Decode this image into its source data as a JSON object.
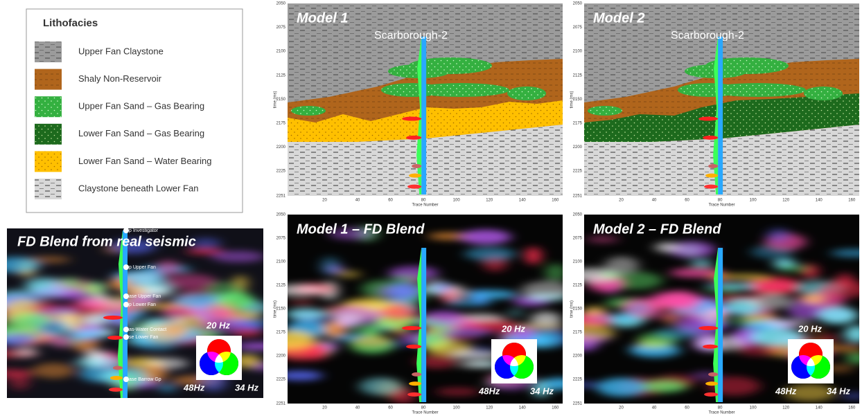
{
  "legend": {
    "title": "Lithofacies",
    "items": [
      "Upper Fan Claystone",
      "Shaly Non-Reservoir",
      "Upper Fan Sand – Gas Bearing",
      "Lower Fan Sand – Gas Bearing",
      "Lower Fan Sand – Water Bearing",
      "Claystone beneath Lower Fan"
    ]
  },
  "real_seismic": {
    "title": "FD Blend from real seismic",
    "markers": [
      "p Investigator",
      "p Upper Fan",
      "ase Upper Fan",
      "p Lower Fan",
      "as-Water Contact",
      "se Lower Fan",
      "ase Barrow Gp"
    ],
    "color_key": {
      "red": "20 Hz",
      "blue": "48Hz",
      "green": "34 Hz"
    }
  },
  "panels": [
    {
      "title": "Model 1",
      "well": "Scarborough-2"
    },
    {
      "title": "Model 2",
      "well": "Scarborough-2"
    },
    {
      "title": "Model 1 – FD Blend",
      "color_key": {
        "red": "20 Hz",
        "blue": "48Hz",
        "green": "34 Hz"
      }
    },
    {
      "title": "Model 2 – FD Blend",
      "color_key": {
        "red": "20 Hz",
        "blue": "48Hz",
        "green": "34 Hz"
      }
    }
  ],
  "axes": {
    "y_label": "time (ms)",
    "yticks": [
      2050,
      2075,
      2100,
      2125,
      2150,
      2175,
      2200,
      2225,
      2251
    ],
    "x_label": "Trace Number",
    "xticks": [
      20,
      40,
      60,
      80,
      100,
      120,
      140,
      160
    ]
  }
}
